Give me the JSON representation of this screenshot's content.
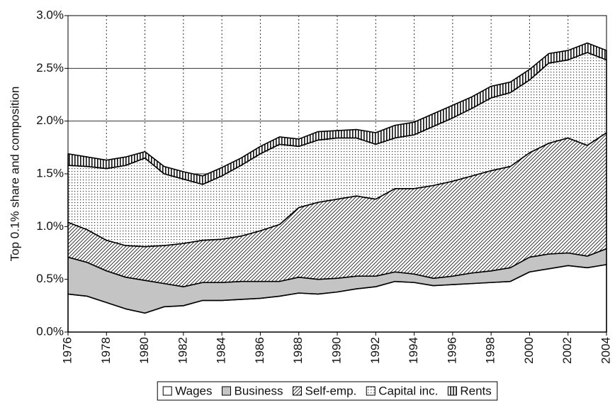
{
  "chart_data": {
    "type": "stacked_area",
    "y_label": "Top 0.1% share and composition",
    "x": [
      1976,
      1977,
      1978,
      1979,
      1980,
      1981,
      1982,
      1983,
      1984,
      1985,
      1986,
      1987,
      1988,
      1989,
      1990,
      1991,
      1992,
      1993,
      1994,
      1995,
      1996,
      1997,
      1998,
      1999,
      2000,
      2001,
      2002,
      2003,
      2004
    ],
    "xlim": [
      1976,
      2004
    ],
    "xticks": [
      1976,
      1978,
      1980,
      1982,
      1984,
      1986,
      1988,
      1990,
      1992,
      1994,
      1996,
      1998,
      2000,
      2002,
      2004
    ],
    "ylim": [
      0,
      3
    ],
    "yticks": [
      {
        "value": 0,
        "label": "0.0%"
      },
      {
        "value": 0.5,
        "label": "0.5%"
      },
      {
        "value": 1,
        "label": "1.0%"
      },
      {
        "value": 1.5,
        "label": "1.5%"
      },
      {
        "value": 2,
        "label": "2.0%"
      },
      {
        "value": 2.5,
        "label": "2.5%"
      },
      {
        "value": 3,
        "label": "3.0%"
      }
    ],
    "grid": true,
    "legend": "bottom",
    "series": [
      {
        "name": "Wages",
        "color": "#ffffff",
        "pattern": "solid",
        "values": [
          0.36,
          0.34,
          0.28,
          0.22,
          0.18,
          0.24,
          0.25,
          0.3,
          0.3,
          0.31,
          0.32,
          0.34,
          0.37,
          0.36,
          0.38,
          0.41,
          0.43,
          0.48,
          0.47,
          0.44,
          0.45,
          0.46,
          0.47,
          0.48,
          0.57,
          0.6,
          0.63,
          0.61,
          0.64
        ]
      },
      {
        "name": "Business",
        "color": "#c4c4c4",
        "pattern": "solid",
        "values": [
          0.35,
          0.32,
          0.3,
          0.3,
          0.31,
          0.22,
          0.18,
          0.17,
          0.17,
          0.17,
          0.16,
          0.14,
          0.15,
          0.14,
          0.13,
          0.12,
          0.1,
          0.09,
          0.08,
          0.07,
          0.08,
          0.1,
          0.11,
          0.13,
          0.14,
          0.14,
          0.12,
          0.11,
          0.15
        ]
      },
      {
        "name": "Self-emp.",
        "color": "#ffffff",
        "pattern": "hatch",
        "values": [
          0.33,
          0.31,
          0.29,
          0.3,
          0.32,
          0.36,
          0.41,
          0.4,
          0.41,
          0.43,
          0.48,
          0.54,
          0.66,
          0.73,
          0.75,
          0.76,
          0.73,
          0.79,
          0.81,
          0.88,
          0.9,
          0.92,
          0.95,
          0.96,
          0.99,
          1.05,
          1.09,
          1.05,
          1.1
        ]
      },
      {
        "name": "Capital inc.",
        "color": "#ffffff",
        "pattern": "dots",
        "values": [
          0.54,
          0.6,
          0.68,
          0.76,
          0.84,
          0.68,
          0.61,
          0.53,
          0.6,
          0.67,
          0.73,
          0.76,
          0.58,
          0.59,
          0.58,
          0.55,
          0.52,
          0.48,
          0.51,
          0.56,
          0.6,
          0.64,
          0.69,
          0.7,
          0.69,
          0.76,
          0.74,
          0.88,
          0.69
        ]
      },
      {
        "name": "Rents",
        "color": "#ffffff",
        "pattern": "stripes",
        "values": [
          0.11,
          0.09,
          0.08,
          0.08,
          0.06,
          0.07,
          0.07,
          0.08,
          0.08,
          0.07,
          0.07,
          0.07,
          0.07,
          0.08,
          0.07,
          0.08,
          0.11,
          0.12,
          0.12,
          0.12,
          0.12,
          0.11,
          0.11,
          0.1,
          0.1,
          0.09,
          0.09,
          0.09,
          0.09
        ]
      }
    ]
  }
}
